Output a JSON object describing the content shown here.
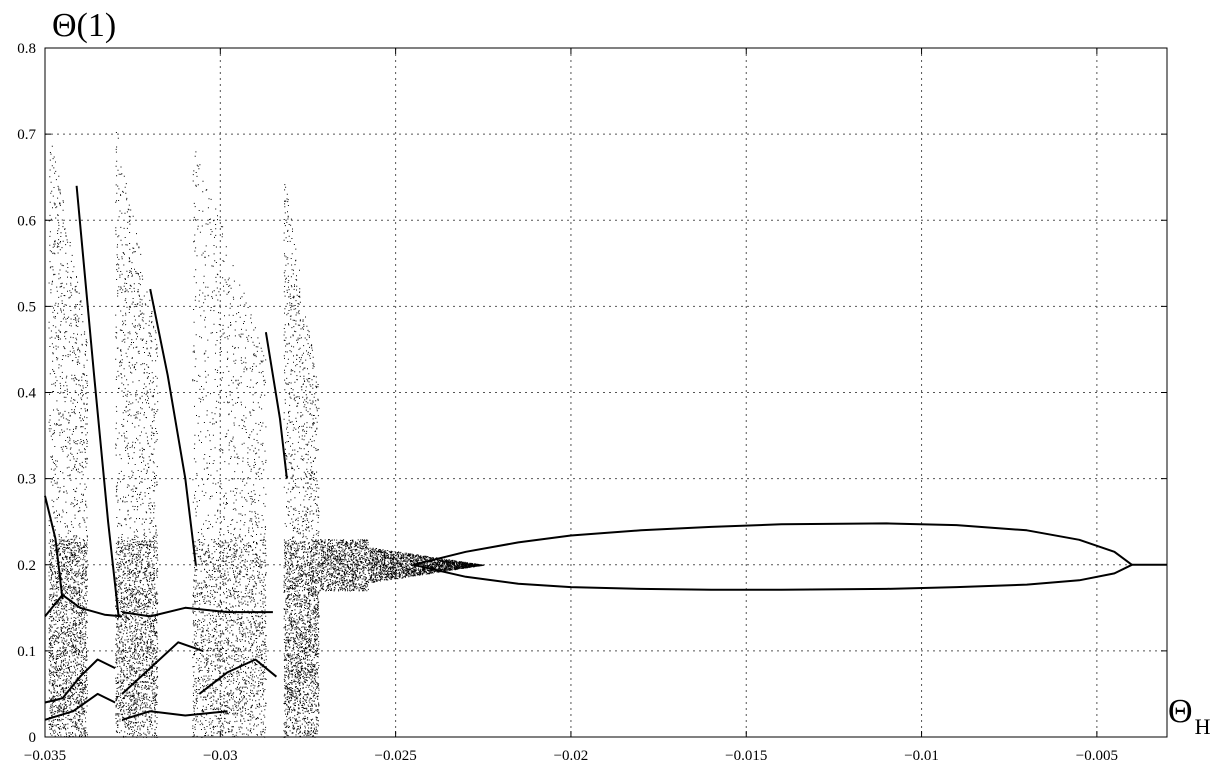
{
  "chart_data": {
    "type": "scatter",
    "title": "",
    "ylabel": "Θ(1)",
    "xlabel_main": "Θ",
    "xlabel_sub": "H",
    "xlim": [
      -0.035,
      -0.003
    ],
    "ylim": [
      0,
      0.8
    ],
    "grid": true,
    "grid_style": "dotted",
    "xticks": [
      -0.035,
      -0.03,
      -0.025,
      -0.02,
      -0.015,
      -0.01,
      -0.005
    ],
    "xtick_labels": [
      "−0.035",
      "−0.03",
      "−0.025",
      "−0.02",
      "−0.015",
      "−0.01",
      "−0.005"
    ],
    "yticks": [
      0,
      0.1,
      0.2,
      0.3,
      0.4,
      0.5,
      0.6,
      0.7,
      0.8
    ],
    "ytick_labels": [
      "0",
      "0.1",
      "0.2",
      "0.3",
      "0.4",
      "0.5",
      "0.6",
      "0.7",
      "0.8"
    ],
    "series": [
      {
        "kind": "chaotic_bands",
        "bands": [
          {
            "x": [
              -0.0349,
              -0.0338
            ],
            "y": [
              0.0,
              0.715
            ]
          },
          {
            "x": [
              -0.033,
              -0.0318
            ],
            "y": [
              0.01,
              0.712
            ]
          },
          {
            "x": [
              -0.0308,
              -0.0287
            ],
            "y": [
              0.01,
              0.695
            ]
          },
          {
            "x": [
              -0.0282,
              -0.0272
            ],
            "y": [
              0.03,
              0.655
            ]
          },
          {
            "x": [
              -0.0272,
              -0.0225
            ],
            "y": [
              0.17,
              0.23
            ]
          }
        ]
      },
      {
        "kind": "period_doubling_bubble",
        "upper": [
          {
            "x": -0.0245,
            "y": 0.2
          },
          {
            "x": -0.023,
            "y": 0.215
          },
          {
            "x": -0.0215,
            "y": 0.226
          },
          {
            "x": -0.02,
            "y": 0.234
          },
          {
            "x": -0.018,
            "y": 0.24
          },
          {
            "x": -0.016,
            "y": 0.244
          },
          {
            "x": -0.014,
            "y": 0.247
          },
          {
            "x": -0.011,
            "y": 0.248
          },
          {
            "x": -0.009,
            "y": 0.246
          },
          {
            "x": -0.007,
            "y": 0.24
          },
          {
            "x": -0.0055,
            "y": 0.229
          },
          {
            "x": -0.0045,
            "y": 0.215
          },
          {
            "x": -0.004,
            "y": 0.2
          }
        ],
        "lower": [
          {
            "x": -0.0245,
            "y": 0.2
          },
          {
            "x": -0.023,
            "y": 0.186
          },
          {
            "x": -0.0215,
            "y": 0.178
          },
          {
            "x": -0.02,
            "y": 0.174
          },
          {
            "x": -0.018,
            "y": 0.172
          },
          {
            "x": -0.016,
            "y": 0.171
          },
          {
            "x": -0.014,
            "y": 0.171
          },
          {
            "x": -0.011,
            "y": 0.172
          },
          {
            "x": -0.009,
            "y": 0.174
          },
          {
            "x": -0.007,
            "y": 0.177
          },
          {
            "x": -0.0055,
            "y": 0.182
          },
          {
            "x": -0.0045,
            "y": 0.19
          },
          {
            "x": -0.004,
            "y": 0.2
          }
        ]
      },
      {
        "kind": "fixed_point",
        "points": [
          {
            "x": -0.004,
            "y": 0.2
          },
          {
            "x": -0.003,
            "y": 0.2
          }
        ]
      },
      {
        "kind": "window_branches",
        "curves": [
          [
            {
              "x": -0.0341,
              "y": 0.64
            },
            {
              "x": -0.0336,
              "y": 0.42
            },
            {
              "x": -0.0332,
              "y": 0.25
            },
            {
              "x": -0.0329,
              "y": 0.14
            }
          ],
          [
            {
              "x": -0.032,
              "y": 0.52
            },
            {
              "x": -0.0315,
              "y": 0.42
            },
            {
              "x": -0.031,
              "y": 0.3
            },
            {
              "x": -0.0307,
              "y": 0.2
            }
          ],
          [
            {
              "x": -0.0287,
              "y": 0.47
            },
            {
              "x": -0.0283,
              "y": 0.37
            },
            {
              "x": -0.0281,
              "y": 0.3
            }
          ],
          [
            {
              "x": -0.035,
              "y": 0.28
            },
            {
              "x": -0.0347,
              "y": 0.23
            },
            {
              "x": -0.0345,
              "y": 0.16
            }
          ],
          [
            {
              "x": -0.035,
              "y": 0.14
            },
            {
              "x": -0.0345,
              "y": 0.165
            },
            {
              "x": -0.034,
              "y": 0.15
            },
            {
              "x": -0.0333,
              "y": 0.142
            },
            {
              "x": -0.0328,
              "y": 0.14
            }
          ],
          [
            {
              "x": -0.035,
              "y": 0.04
            },
            {
              "x": -0.0345,
              "y": 0.045
            },
            {
              "x": -0.034,
              "y": 0.07
            },
            {
              "x": -0.0335,
              "y": 0.09
            },
            {
              "x": -0.033,
              "y": 0.08
            }
          ],
          [
            {
              "x": -0.035,
              "y": 0.02
            },
            {
              "x": -0.0342,
              "y": 0.03
            },
            {
              "x": -0.0335,
              "y": 0.05
            },
            {
              "x": -0.033,
              "y": 0.04
            }
          ],
          [
            {
              "x": -0.0328,
              "y": 0.145
            },
            {
              "x": -0.032,
              "y": 0.14
            },
            {
              "x": -0.031,
              "y": 0.15
            },
            {
              "x": -0.0298,
              "y": 0.145
            },
            {
              "x": -0.0285,
              "y": 0.145
            }
          ],
          [
            {
              "x": -0.0328,
              "y": 0.05
            },
            {
              "x": -0.032,
              "y": 0.08
            },
            {
              "x": -0.0312,
              "y": 0.11
            },
            {
              "x": -0.0305,
              "y": 0.1
            }
          ],
          [
            {
              "x": -0.0328,
              "y": 0.02
            },
            {
              "x": -0.032,
              "y": 0.03
            },
            {
              "x": -0.031,
              "y": 0.025
            },
            {
              "x": -0.0298,
              "y": 0.03
            }
          ],
          [
            {
              "x": -0.0306,
              "y": 0.05
            },
            {
              "x": -0.0298,
              "y": 0.075
            },
            {
              "x": -0.029,
              "y": 0.09
            },
            {
              "x": -0.0284,
              "y": 0.07
            }
          ]
        ]
      }
    ]
  }
}
